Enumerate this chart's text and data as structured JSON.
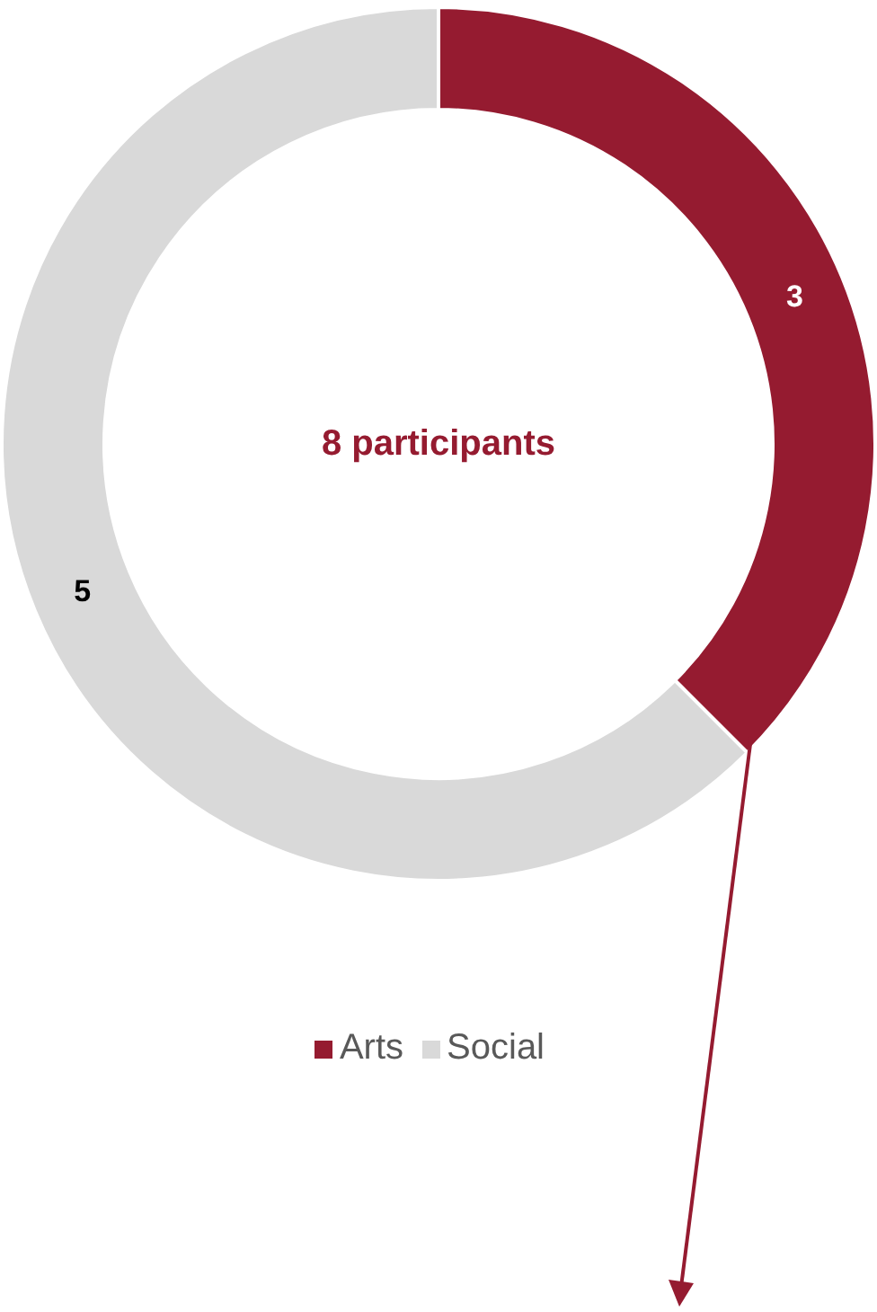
{
  "chart_data": {
    "type": "donut",
    "categories": [
      "Arts",
      "Social"
    ],
    "values": [
      3,
      5
    ],
    "colors": [
      "#951b30",
      "#d9d9d9"
    ],
    "data_labels": true,
    "legend": "bottom",
    "annotations": [
      "8 participants"
    ]
  }
}
